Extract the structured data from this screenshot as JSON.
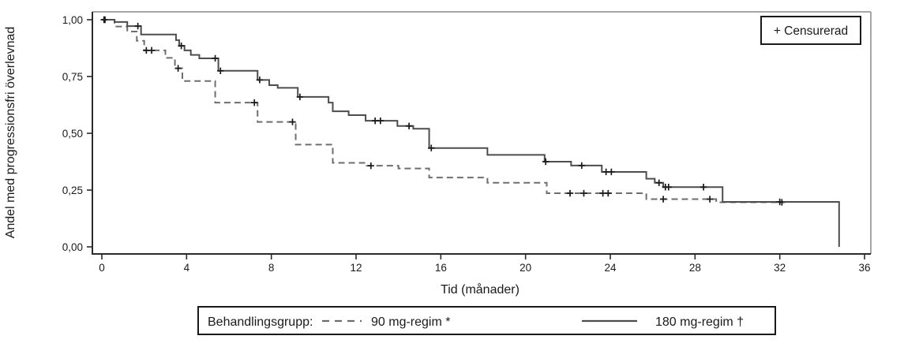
{
  "figure": {
    "y_axis_title": "Andel med progressionsfri överlevnad",
    "x_axis_title": "Tid (månader)",
    "censored_box_label": "+ Censurerad",
    "legend": {
      "title": "Behandlingsgrupp:",
      "series1_label": "90 mg-regim *",
      "series2_label": "180 mg-regim †"
    }
  },
  "colors": {
    "solid_curve": "#4d4d4d",
    "dashed_curve": "#6e6e6e",
    "censor_mark": "#1a1a1a",
    "axis": "#2b2b2b",
    "frame_gray": "#a6a6a6",
    "text": "#1a1a1a",
    "background": "#ffffff"
  },
  "chart_data": {
    "type": "line",
    "subtype": "kaplan-meier-step",
    "title": "",
    "xlabel": "Tid (månader)",
    "ylabel": "Andel med progressionsfri överlevnad",
    "xlim": [
      0,
      36
    ],
    "ylim": [
      0.0,
      1.0
    ],
    "grid": false,
    "legend_position": "bottom",
    "x_ticks": [
      0,
      4,
      8,
      12,
      16,
      20,
      24,
      28,
      32,
      36
    ],
    "y_ticks": [
      {
        "value": 1.0,
        "label": "1,00"
      },
      {
        "value": 0.75,
        "label": "0,75"
      },
      {
        "value": 0.5,
        "label": "0,50"
      },
      {
        "value": 0.25,
        "label": "0,25"
      },
      {
        "value": 0.0,
        "label": "0,00"
      }
    ],
    "annotations": [
      {
        "text": "+ Censurerad",
        "position": "top-right"
      }
    ],
    "series": [
      {
        "name": "90 mg-regim *",
        "style": "dashed",
        "color": "#6e6e6e",
        "x_unit": "months",
        "points": [
          [
            0,
            1.0
          ],
          [
            0.6,
            0.97
          ],
          [
            1.2,
            0.948
          ],
          [
            1.65,
            0.907
          ],
          [
            2.0,
            0.865
          ],
          [
            3.0,
            0.832
          ],
          [
            3.45,
            0.786
          ],
          [
            3.8,
            0.73
          ],
          [
            5.35,
            0.635
          ],
          [
            7.35,
            0.55
          ],
          [
            9.15,
            0.45
          ],
          [
            10.9,
            0.37
          ],
          [
            12.5,
            0.357
          ],
          [
            14.0,
            0.345
          ],
          [
            15.45,
            0.305
          ],
          [
            18.2,
            0.282
          ],
          [
            21.0,
            0.236
          ],
          [
            25.7,
            0.21
          ],
          [
            29.0,
            0.196
          ],
          [
            32.2,
            0.196
          ]
        ],
        "censor_marks": [
          [
            0.15,
            1.0
          ],
          [
            2.1,
            0.865
          ],
          [
            2.35,
            0.865
          ],
          [
            3.6,
            0.786
          ],
          [
            7.2,
            0.635
          ],
          [
            9.0,
            0.55
          ],
          [
            12.7,
            0.357
          ],
          [
            22.1,
            0.236
          ],
          [
            22.75,
            0.236
          ],
          [
            23.65,
            0.236
          ],
          [
            23.9,
            0.236
          ],
          [
            26.5,
            0.21
          ],
          [
            28.7,
            0.21
          ],
          [
            32.1,
            0.196
          ]
        ]
      },
      {
        "name": "180 mg-regim †",
        "style": "solid",
        "color": "#4d4d4d",
        "x_unit": "months",
        "points": [
          [
            0,
            1.0
          ],
          [
            0.6,
            0.99
          ],
          [
            1.2,
            0.972
          ],
          [
            1.85,
            0.935
          ],
          [
            3.5,
            0.91
          ],
          [
            3.65,
            0.885
          ],
          [
            3.9,
            0.865
          ],
          [
            4.2,
            0.845
          ],
          [
            4.6,
            0.83
          ],
          [
            5.5,
            0.775
          ],
          [
            7.35,
            0.735
          ],
          [
            7.9,
            0.712
          ],
          [
            8.3,
            0.7
          ],
          [
            9.25,
            0.66
          ],
          [
            10.7,
            0.635
          ],
          [
            10.9,
            0.597
          ],
          [
            11.65,
            0.58
          ],
          [
            12.45,
            0.555
          ],
          [
            13.95,
            0.532
          ],
          [
            14.7,
            0.52
          ],
          [
            15.45,
            0.435
          ],
          [
            18.2,
            0.405
          ],
          [
            20.9,
            0.375
          ],
          [
            22.15,
            0.358
          ],
          [
            23.6,
            0.33
          ],
          [
            25.7,
            0.3
          ],
          [
            26.1,
            0.282
          ],
          [
            26.5,
            0.263
          ],
          [
            29.3,
            0.198
          ],
          [
            34.8,
            0.0
          ]
        ],
        "censor_marks": [
          [
            0.1,
            1.0
          ],
          [
            1.7,
            0.972
          ],
          [
            3.75,
            0.885
          ],
          [
            5.35,
            0.83
          ],
          [
            5.6,
            0.775
          ],
          [
            7.45,
            0.735
          ],
          [
            9.35,
            0.66
          ],
          [
            12.9,
            0.555
          ],
          [
            13.15,
            0.555
          ],
          [
            14.5,
            0.532
          ],
          [
            15.55,
            0.435
          ],
          [
            20.95,
            0.375
          ],
          [
            22.65,
            0.358
          ],
          [
            23.8,
            0.33
          ],
          [
            24.05,
            0.33
          ],
          [
            26.3,
            0.282
          ],
          [
            26.6,
            0.263
          ],
          [
            26.75,
            0.263
          ],
          [
            28.4,
            0.263
          ],
          [
            32.0,
            0.198
          ]
        ]
      }
    ]
  }
}
